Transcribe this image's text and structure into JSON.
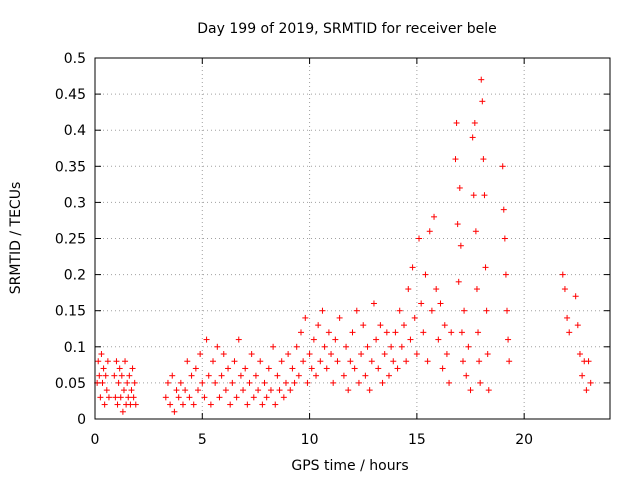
{
  "chart_data": {
    "type": "scatter",
    "title": "Day 199 of 2019, SRMTID for receiver bele",
    "xlabel": "GPS time / hours",
    "ylabel": "SRMTID / TECUs",
    "xlim": [
      0,
      24
    ],
    "ylim": [
      0,
      0.5
    ],
    "xticks": [
      0,
      5,
      10,
      15,
      20
    ],
    "yticks": [
      0,
      0.05,
      0.1,
      0.15,
      0.2,
      0.25,
      0.3,
      0.35,
      0.4,
      0.45,
      0.5
    ],
    "grid": true,
    "marker": "plus",
    "series": [
      {
        "name": "SRMTID",
        "color": "#ff0000",
        "points": [
          [
            0.1,
            0.05
          ],
          [
            0.15,
            0.08
          ],
          [
            0.2,
            0.06
          ],
          [
            0.25,
            0.03
          ],
          [
            0.3,
            0.09
          ],
          [
            0.35,
            0.05
          ],
          [
            0.4,
            0.07
          ],
          [
            0.45,
            0.02
          ],
          [
            0.5,
            0.06
          ],
          [
            0.55,
            0.04
          ],
          [
            0.6,
            0.08
          ],
          [
            0.65,
            0.03
          ],
          [
            0.9,
            0.06
          ],
          [
            0.95,
            0.03
          ],
          [
            1.0,
            0.08
          ],
          [
            1.05,
            0.02
          ],
          [
            1.1,
            0.05
          ],
          [
            1.15,
            0.07
          ],
          [
            1.2,
            0.03
          ],
          [
            1.25,
            0.06
          ],
          [
            1.3,
            0.01
          ],
          [
            1.35,
            0.04
          ],
          [
            1.4,
            0.08
          ],
          [
            1.45,
            0.02
          ],
          [
            1.5,
            0.05
          ],
          [
            1.55,
            0.03
          ],
          [
            1.6,
            0.06
          ],
          [
            1.65,
            0.02
          ],
          [
            1.7,
            0.04
          ],
          [
            1.75,
            0.07
          ],
          [
            1.8,
            0.03
          ],
          [
            1.85,
            0.05
          ],
          [
            1.9,
            0.02
          ],
          [
            3.3,
            0.03
          ],
          [
            3.4,
            0.05
          ],
          [
            3.5,
            0.02
          ],
          [
            3.6,
            0.06
          ],
          [
            3.7,
            0.01
          ],
          [
            3.8,
            0.04
          ],
          [
            3.9,
            0.03
          ],
          [
            4.0,
            0.05
          ],
          [
            4.1,
            0.02
          ],
          [
            4.2,
            0.04
          ],
          [
            4.3,
            0.08
          ],
          [
            4.4,
            0.03
          ],
          [
            4.5,
            0.06
          ],
          [
            4.6,
            0.02
          ],
          [
            4.7,
            0.07
          ],
          [
            4.8,
            0.04
          ],
          [
            4.9,
            0.09
          ],
          [
            5.0,
            0.05
          ],
          [
            5.1,
            0.03
          ],
          [
            5.2,
            0.11
          ],
          [
            5.3,
            0.06
          ],
          [
            5.4,
            0.02
          ],
          [
            5.5,
            0.08
          ],
          [
            5.6,
            0.05
          ],
          [
            5.7,
            0.1
          ],
          [
            5.8,
            0.03
          ],
          [
            5.9,
            0.06
          ],
          [
            6.0,
            0.09
          ],
          [
            6.1,
            0.04
          ],
          [
            6.2,
            0.07
          ],
          [
            6.3,
            0.02
          ],
          [
            6.4,
            0.05
          ],
          [
            6.5,
            0.08
          ],
          [
            6.6,
            0.03
          ],
          [
            6.7,
            0.11
          ],
          [
            6.8,
            0.06
          ],
          [
            6.9,
            0.04
          ],
          [
            7.0,
            0.07
          ],
          [
            7.1,
            0.02
          ],
          [
            7.2,
            0.05
          ],
          [
            7.3,
            0.09
          ],
          [
            7.4,
            0.03
          ],
          [
            7.5,
            0.06
          ],
          [
            7.6,
            0.04
          ],
          [
            7.7,
            0.08
          ],
          [
            7.8,
            0.02
          ],
          [
            7.9,
            0.05
          ],
          [
            8.0,
            0.03
          ],
          [
            8.1,
            0.07
          ],
          [
            8.2,
            0.04
          ],
          [
            8.3,
            0.1
          ],
          [
            8.4,
            0.02
          ],
          [
            8.5,
            0.06
          ],
          [
            8.6,
            0.04
          ],
          [
            8.7,
            0.08
          ],
          [
            8.8,
            0.03
          ],
          [
            8.9,
            0.05
          ],
          [
            9.0,
            0.09
          ],
          [
            9.1,
            0.04
          ],
          [
            9.2,
            0.07
          ],
          [
            9.3,
            0.05
          ],
          [
            9.4,
            0.1
          ],
          [
            9.5,
            0.06
          ],
          [
            9.6,
            0.12
          ],
          [
            9.7,
            0.08
          ],
          [
            9.8,
            0.14
          ],
          [
            9.9,
            0.05
          ],
          [
            10.0,
            0.09
          ],
          [
            10.1,
            0.07
          ],
          [
            10.2,
            0.11
          ],
          [
            10.3,
            0.06
          ],
          [
            10.4,
            0.13
          ],
          [
            10.5,
            0.08
          ],
          [
            10.6,
            0.15
          ],
          [
            10.7,
            0.1
          ],
          [
            10.8,
            0.07
          ],
          [
            10.9,
            0.12
          ],
          [
            11.0,
            0.09
          ],
          [
            11.1,
            0.05
          ],
          [
            11.2,
            0.11
          ],
          [
            11.3,
            0.08
          ],
          [
            11.4,
            0.14
          ],
          [
            11.6,
            0.06
          ],
          [
            11.7,
            0.1
          ],
          [
            11.8,
            0.04
          ],
          [
            11.9,
            0.08
          ],
          [
            12.0,
            0.12
          ],
          [
            12.1,
            0.07
          ],
          [
            12.2,
            0.15
          ],
          [
            12.3,
            0.05
          ],
          [
            12.4,
            0.09
          ],
          [
            12.5,
            0.13
          ],
          [
            12.6,
            0.06
          ],
          [
            12.7,
            0.1
          ],
          [
            12.8,
            0.04
          ],
          [
            12.9,
            0.08
          ],
          [
            13.0,
            0.16
          ],
          [
            13.1,
            0.11
          ],
          [
            13.2,
            0.07
          ],
          [
            13.3,
            0.13
          ],
          [
            13.4,
            0.05
          ],
          [
            13.5,
            0.09
          ],
          [
            13.6,
            0.12
          ],
          [
            13.7,
            0.06
          ],
          [
            13.8,
            0.1
          ],
          [
            13.9,
            0.08
          ],
          [
            14.0,
            0.12
          ],
          [
            14.1,
            0.07
          ],
          [
            14.2,
            0.15
          ],
          [
            14.3,
            0.1
          ],
          [
            14.4,
            0.13
          ],
          [
            14.5,
            0.08
          ],
          [
            14.6,
            0.18
          ],
          [
            14.7,
            0.11
          ],
          [
            14.8,
            0.21
          ],
          [
            14.9,
            0.14
          ],
          [
            15.0,
            0.09
          ],
          [
            15.1,
            0.25
          ],
          [
            15.2,
            0.16
          ],
          [
            15.3,
            0.12
          ],
          [
            15.4,
            0.2
          ],
          [
            15.5,
            0.08
          ],
          [
            15.6,
            0.26
          ],
          [
            15.7,
            0.15
          ],
          [
            15.8,
            0.28
          ],
          [
            15.9,
            0.18
          ],
          [
            16.0,
            0.11
          ],
          [
            16.1,
            0.16
          ],
          [
            16.2,
            0.07
          ],
          [
            16.3,
            0.13
          ],
          [
            16.4,
            0.09
          ],
          [
            16.5,
            0.05
          ],
          [
            16.6,
            0.12
          ],
          [
            16.8,
            0.36
          ],
          [
            16.85,
            0.41
          ],
          [
            16.9,
            0.27
          ],
          [
            16.95,
            0.19
          ],
          [
            17.0,
            0.32
          ],
          [
            17.05,
            0.24
          ],
          [
            17.1,
            0.12
          ],
          [
            17.15,
            0.08
          ],
          [
            17.2,
            0.15
          ],
          [
            17.3,
            0.06
          ],
          [
            17.4,
            0.1
          ],
          [
            17.5,
            0.04
          ],
          [
            17.6,
            0.39
          ],
          [
            17.65,
            0.31
          ],
          [
            17.7,
            0.41
          ],
          [
            17.75,
            0.26
          ],
          [
            17.8,
            0.18
          ],
          [
            17.85,
            0.12
          ],
          [
            17.9,
            0.08
          ],
          [
            17.95,
            0.05
          ],
          [
            18.0,
            0.47
          ],
          [
            18.05,
            0.44
          ],
          [
            18.1,
            0.36
          ],
          [
            18.15,
            0.31
          ],
          [
            18.2,
            0.21
          ],
          [
            18.25,
            0.15
          ],
          [
            18.3,
            0.09
          ],
          [
            18.35,
            0.04
          ],
          [
            19.0,
            0.35
          ],
          [
            19.05,
            0.29
          ],
          [
            19.1,
            0.25
          ],
          [
            19.15,
            0.2
          ],
          [
            19.2,
            0.15
          ],
          [
            19.25,
            0.11
          ],
          [
            19.3,
            0.08
          ],
          [
            21.8,
            0.2
          ],
          [
            21.9,
            0.18
          ],
          [
            22.0,
            0.14
          ],
          [
            22.1,
            0.12
          ],
          [
            22.4,
            0.17
          ],
          [
            22.5,
            0.13
          ],
          [
            22.6,
            0.09
          ],
          [
            22.7,
            0.06
          ],
          [
            22.8,
            0.08
          ],
          [
            22.9,
            0.04
          ],
          [
            23.0,
            0.08
          ],
          [
            23.1,
            0.05
          ]
        ]
      }
    ]
  }
}
